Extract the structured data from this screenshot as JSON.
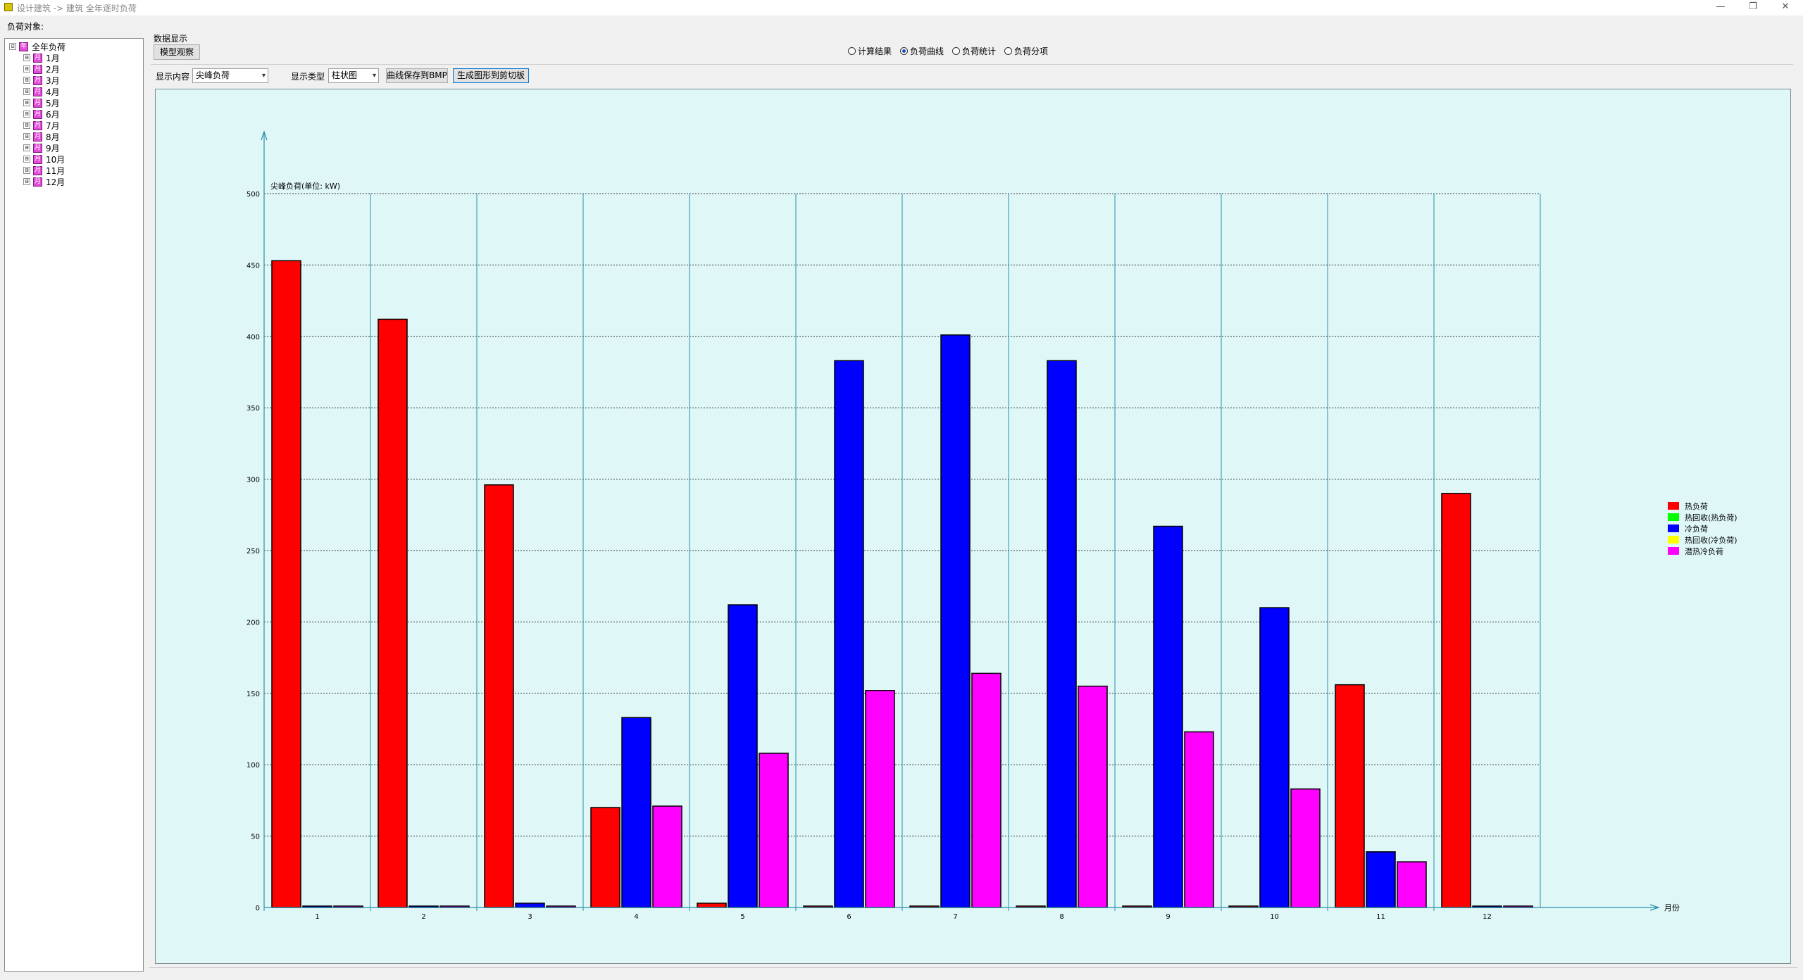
{
  "window": {
    "title": "设计建筑 -> 建筑 全年逐时负荷",
    "buttons": {
      "minimize": "—",
      "maximize": "❐",
      "close": "✕"
    }
  },
  "left_panel": {
    "label": "负荷对象:",
    "root": {
      "label": "全年负荷",
      "icon": "calendar-year-icon",
      "icon_text": "年",
      "expander": "⊟"
    },
    "months": [
      {
        "label": "1月",
        "icon_text": "月"
      },
      {
        "label": "2月",
        "icon_text": "月"
      },
      {
        "label": "3月",
        "icon_text": "月"
      },
      {
        "label": "4月",
        "icon_text": "月"
      },
      {
        "label": "5月",
        "icon_text": "月"
      },
      {
        "label": "6月",
        "icon_text": "月"
      },
      {
        "label": "7月",
        "icon_text": "月"
      },
      {
        "label": "8月",
        "icon_text": "月"
      },
      {
        "label": "9月",
        "icon_text": "月"
      },
      {
        "label": "10月",
        "icon_text": "月"
      },
      {
        "label": "11月",
        "icon_text": "月"
      },
      {
        "label": "12月",
        "icon_text": "月"
      }
    ],
    "month_expander": "⊞"
  },
  "data_section": {
    "label": "数据显示",
    "model_button": "模型观察"
  },
  "view_radios": [
    {
      "label": "计算结果",
      "checked": false
    },
    {
      "label": "负荷曲线",
      "checked": true
    },
    {
      "label": "负荷统计",
      "checked": false
    },
    {
      "label": "负荷分项",
      "checked": false
    }
  ],
  "toolbar": {
    "content_label": "显示内容",
    "content_value": "尖峰负荷",
    "type_label": "显示类型",
    "type_value": "柱状图",
    "save_bmp_button": "曲线保存到BMP",
    "copy_button": "生成图形到剪切板"
  },
  "colors": {
    "heat_load": "#ff0000",
    "heat_recovery_heat": "#00ff00",
    "cool_load": "#0000ff",
    "heat_recovery_cool": "#ffff00",
    "latent_cool": "#ff00ff",
    "chart_background": "#dff7f7",
    "axis": "#2a8fa8"
  },
  "chart_data": {
    "type": "bar",
    "title": "尖峰负荷(单位: kW)",
    "xlabel": "月份",
    "ylabel": "",
    "ylim": [
      0,
      500
    ],
    "yticks": [
      0,
      50,
      100,
      150,
      200,
      250,
      300,
      350,
      400,
      450,
      500
    ],
    "categories": [
      "1",
      "2",
      "3",
      "4",
      "5",
      "6",
      "7",
      "8",
      "9",
      "10",
      "11",
      "12"
    ],
    "grid": true,
    "legend_position": "right",
    "series": [
      {
        "name": "热负荷",
        "color": "#ff0000",
        "values": [
          453,
          412,
          296,
          70,
          3,
          0,
          0,
          0,
          0,
          0,
          156,
          290
        ]
      },
      {
        "name": "热回收(热负荷)",
        "color": "#00ff00",
        "values": [
          0,
          0,
          0,
          0,
          0,
          0,
          0,
          0,
          0,
          0,
          0,
          0
        ]
      },
      {
        "name": "冷负荷",
        "color": "#0000ff",
        "values": [
          0,
          0,
          3,
          133,
          212,
          383,
          401,
          383,
          267,
          210,
          39,
          0
        ]
      },
      {
        "name": "热回收(冷负荷)",
        "color": "#ffff00",
        "values": [
          0,
          0,
          0,
          0,
          0,
          0,
          0,
          0,
          0,
          0,
          0,
          0
        ]
      },
      {
        "name": "潜热冷负荷",
        "color": "#ff00ff",
        "values": [
          0,
          0,
          0,
          71,
          108,
          152,
          164,
          155,
          123,
          83,
          32,
          0
        ]
      }
    ],
    "bar_series_order": [
      "热负荷",
      "冷负荷",
      "潜热冷负荷"
    ]
  }
}
